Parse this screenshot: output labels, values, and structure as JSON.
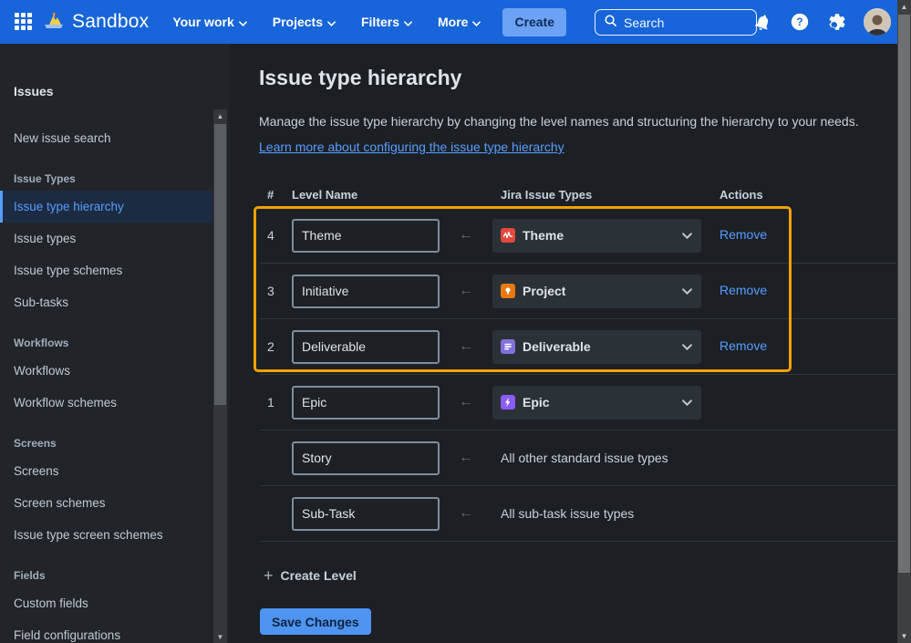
{
  "topbar": {
    "product_name": "Sandbox",
    "nav_items": [
      {
        "label": "Your work"
      },
      {
        "label": "Projects"
      },
      {
        "label": "Filters"
      },
      {
        "label": "More"
      }
    ],
    "create_label": "Create",
    "search_placeholder": "Search"
  },
  "sidebar": {
    "title": "Issues",
    "groups": [
      {
        "heading": "",
        "items": [
          {
            "label": "New issue search",
            "selected": false
          }
        ]
      },
      {
        "heading": "Issue Types",
        "items": [
          {
            "label": "Issue type hierarchy",
            "selected": true
          },
          {
            "label": "Issue types",
            "selected": false
          },
          {
            "label": "Issue type schemes",
            "selected": false
          },
          {
            "label": "Sub-tasks",
            "selected": false
          }
        ]
      },
      {
        "heading": "Workflows",
        "items": [
          {
            "label": "Workflows",
            "selected": false
          },
          {
            "label": "Workflow schemes",
            "selected": false
          }
        ]
      },
      {
        "heading": "Screens",
        "items": [
          {
            "label": "Screens",
            "selected": false
          },
          {
            "label": "Screen schemes",
            "selected": false
          },
          {
            "label": "Issue type screen schemes",
            "selected": false
          }
        ]
      },
      {
        "heading": "Fields",
        "items": [
          {
            "label": "Custom fields",
            "selected": false
          },
          {
            "label": "Field configurations",
            "selected": false
          }
        ]
      }
    ]
  },
  "main": {
    "title": "Issue type hierarchy",
    "description": "Manage the issue type hierarchy by changing the level names and structuring the hierarchy to your needs.",
    "learn_more": "Learn more about configuring the issue type hierarchy",
    "table": {
      "headers": [
        "#",
        "Level Name",
        "Jira Issue Types",
        "Actions"
      ],
      "rows": [
        {
          "num": "4",
          "level_name": "Theme",
          "kind": "dropdown",
          "jira_issue_type": "Theme",
          "icon": "theme-icon",
          "icon_color": "#E2483D",
          "action": "Remove",
          "highlighted": true
        },
        {
          "num": "3",
          "level_name": "Initiative",
          "kind": "dropdown",
          "jira_issue_type": "Project",
          "icon": "project-icon",
          "icon_color": "#E8790F",
          "action": "Remove",
          "highlighted": true
        },
        {
          "num": "2",
          "level_name": "Deliverable",
          "kind": "dropdown",
          "jira_issue_type": "Deliverable",
          "icon": "deliverable-icon",
          "icon_color": "#8270DB",
          "action": "Remove",
          "highlighted": true
        },
        {
          "num": "1",
          "level_name": "Epic",
          "kind": "dropdown",
          "jira_issue_type": "Epic",
          "icon": "epic-icon",
          "icon_color": "#8B5CF6",
          "action": "",
          "highlighted": false
        },
        {
          "num": "",
          "level_name": "Story",
          "kind": "text",
          "jira_issue_type": "All other standard issue types",
          "icon": "",
          "icon_color": "",
          "action": "",
          "highlighted": false
        },
        {
          "num": "",
          "level_name": "Sub-Task",
          "kind": "text",
          "jira_issue_type": "All sub-task issue types",
          "icon": "",
          "icon_color": "",
          "action": "",
          "highlighted": false
        }
      ]
    },
    "create_level_label": "Create Level",
    "save_button_label": "Save Changes"
  },
  "colors": {
    "topbar_blue": "#1765D8",
    "accent_blue": "#579DFF",
    "link_blue": "#579DFF",
    "highlight_orange": "#F0A100",
    "selected_item_bg": "#1C2B41"
  }
}
